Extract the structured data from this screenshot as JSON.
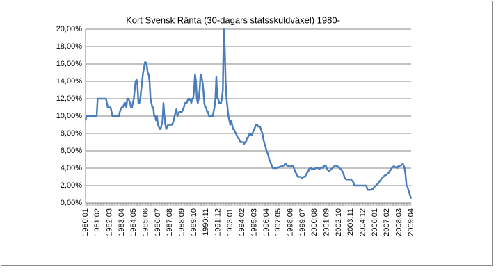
{
  "chart_data": {
    "type": "line",
    "title": "Kort Svensk Ränta (30-dagars statsskuldväxel) 1980-",
    "categories": [
      "1980:01",
      null,
      null,
      null,
      null,
      null,
      null,
      null,
      null,
      null,
      null,
      null,
      null,
      "1981:02",
      null,
      null,
      null,
      null,
      null,
      null,
      null,
      null,
      null,
      null,
      null,
      null,
      "1982:03",
      null,
      null,
      null,
      null,
      null,
      null,
      null,
      null,
      null,
      null,
      null,
      null,
      "1983:04",
      null,
      null,
      null,
      null,
      null,
      null,
      null,
      null,
      null,
      null,
      null,
      null,
      "1984:05",
      null,
      null,
      null,
      null,
      null,
      null,
      null,
      null,
      null,
      null,
      null,
      null,
      "1985:06",
      null,
      null,
      null,
      null,
      null,
      null,
      null,
      null,
      null,
      null,
      null,
      null,
      "1986:07",
      null,
      null,
      null,
      null,
      null,
      null,
      null,
      null,
      null,
      null,
      null,
      null,
      "1987:08",
      null,
      null,
      null,
      null,
      null,
      null,
      null,
      null,
      null,
      null,
      null,
      null,
      "1988:09",
      null,
      null,
      null,
      null,
      null,
      null,
      null,
      null,
      null,
      null,
      null,
      null,
      "1989:10",
      null,
      null,
      null,
      null,
      null,
      null,
      null,
      null,
      null,
      null,
      null,
      null,
      "1990:11",
      null,
      null,
      null,
      null,
      null,
      null,
      null,
      null,
      null,
      null,
      null,
      null,
      "1991:12",
      null,
      null,
      null,
      null,
      null,
      null,
      null,
      null,
      null,
      null,
      null,
      null,
      "1993:01",
      null,
      null,
      null,
      null,
      null,
      null,
      null,
      null,
      null,
      null,
      null,
      null,
      "1994:02",
      null,
      null,
      null,
      null,
      null,
      null,
      null,
      null,
      null,
      null,
      null,
      null,
      "1995:03",
      null,
      null,
      null,
      null,
      null,
      null,
      null,
      null,
      null,
      null,
      null,
      null,
      "1996:04",
      null,
      null,
      null,
      null,
      null,
      null,
      null,
      null,
      null,
      null,
      null,
      null,
      "1997:05",
      null,
      null,
      null,
      null,
      null,
      null,
      null,
      null,
      null,
      null,
      null,
      null,
      "1998:06",
      null,
      null,
      null,
      null,
      null,
      null,
      null,
      null,
      null,
      null,
      null,
      null,
      "1999:07",
      null,
      null,
      null,
      null,
      null,
      null,
      null,
      null,
      null,
      null,
      null,
      null,
      "2000:08",
      null,
      null,
      null,
      null,
      null,
      null,
      null,
      null,
      null,
      null,
      null,
      null,
      "2001:09",
      null,
      null,
      null,
      null,
      null,
      null,
      null,
      null,
      null,
      null,
      null,
      null,
      "2002:10",
      null,
      null,
      null,
      null,
      null,
      null,
      null,
      null,
      null,
      null,
      null,
      null,
      "2003:11",
      null,
      null,
      null,
      null,
      null,
      null,
      null,
      null,
      null,
      null,
      null,
      null,
      "2004:12",
      null,
      null,
      null,
      null,
      null,
      null,
      null,
      null,
      null,
      null,
      null,
      null,
      "2006:01",
      null,
      null,
      null,
      null,
      null,
      null,
      null,
      null,
      null,
      null,
      null,
      null,
      "2007:02",
      null,
      null,
      null,
      null,
      null,
      null,
      null,
      null,
      null,
      null,
      null,
      null,
      "2008:03",
      null,
      null,
      null,
      null,
      null,
      null,
      null,
      null,
      null,
      null,
      null,
      null,
      "2009:04"
    ],
    "values": [
      9.5,
      10,
      10,
      10,
      10,
      10,
      10,
      10,
      10,
      10,
      10,
      10,
      10,
      12,
      12,
      12,
      12,
      12,
      12,
      12,
      12,
      12,
      12,
      11.5,
      11,
      11,
      11,
      11,
      10.5,
      10,
      10,
      10,
      10,
      10,
      10,
      10,
      10,
      10.5,
      10.8,
      11,
      11,
      11.2,
      11.5,
      11.5,
      11,
      12,
      12,
      11.8,
      11.5,
      11,
      11,
      11.5,
      12,
      13,
      14,
      14.2,
      13.5,
      11.5,
      11.5,
      12,
      13,
      14,
      15,
      15.5,
      16.2,
      16.2,
      15.8,
      15,
      14.8,
      14,
      12,
      11.5,
      11,
      11,
      10,
      10,
      9.5,
      10,
      9,
      8.8,
      8.5,
      8.5,
      9,
      9.5,
      11.5,
      10,
      9,
      8.5,
      8.8,
      9,
      9,
      9,
      9,
      9,
      9.2,
      9.5,
      10,
      10.5,
      10.8,
      10,
      10.2,
      10.5,
      10.5,
      10.5,
      10.5,
      10.8,
      11,
      11.5,
      11.5,
      11.5,
      11.8,
      12,
      12,
      11.8,
      11.5,
      12,
      12,
      13,
      14.8,
      14,
      12,
      11.5,
      12,
      13,
      14.8,
      14.5,
      14,
      13,
      11.5,
      11,
      11,
      10.5,
      10.5,
      10,
      10,
      10,
      10,
      10,
      10.5,
      11,
      12,
      14.5,
      12,
      12,
      11.5,
      11.5,
      11.5,
      12,
      13,
      20,
      18,
      14,
      12,
      11,
      10,
      9.5,
      9,
      9.5,
      9,
      8.5,
      8.5,
      8.2,
      8,
      7.8,
      7.5,
      7.5,
      7.2,
      7,
      7,
      7,
      7,
      6.8,
      7,
      7,
      7.5,
      7.5,
      7.8,
      8,
      8,
      7.8,
      8,
      8.3,
      8.5,
      8.8,
      9,
      9,
      8.8,
      8.8,
      8.8,
      8.5,
      8.2,
      7.8,
      7.2,
      6.8,
      6.5,
      6,
      5.8,
      5.5,
      5,
      4.8,
      4.5,
      4.2,
      4,
      4,
      4,
      4,
      4,
      4.1,
      4.1,
      4.1,
      4.2,
      4.2,
      4.2,
      4.3,
      4.3,
      4.5,
      4.5,
      4.3,
      4.3,
      4.2,
      4.2,
      4.2,
      4.2,
      4.3,
      4.2,
      3.9,
      3.6,
      3.4,
      3.2,
      3,
      3,
      3,
      3,
      2.9,
      2.9,
      3,
      3,
      3.1,
      3.3,
      3.5,
      3.6,
      3.9,
      4,
      4,
      3.9,
      3.9,
      3.9,
      3.9,
      4,
      4,
      4,
      4,
      3.9,
      4,
      4,
      4.1,
      4,
      4.2,
      4.3,
      4.3,
      4,
      3.8,
      3.7,
      3.7,
      3.8,
      3.9,
      4,
      4.1,
      4.2,
      4.3,
      4.3,
      4.2,
      4.2,
      4.1,
      4,
      3.9,
      3.8,
      3.6,
      3.4,
      3,
      2.8,
      2.7,
      2.7,
      2.7,
      2.7,
      2.7,
      2.7,
      2.6,
      2.5,
      2.3,
      2,
      2,
      2,
      2,
      2,
      2,
      2,
      2,
      2,
      2,
      2,
      2,
      2,
      1.9,
      1.5,
      1.5,
      1.5,
      1.5,
      1.5,
      1.6,
      1.6,
      1.8,
      1.9,
      2,
      2.1,
      2.2,
      2.3,
      2.5,
      2.6,
      2.8,
      2.9,
      3,
      3.1,
      3.2,
      3.2,
      3.3,
      3.4,
      3.5,
      3.7,
      3.8,
      4,
      4.1,
      4.2,
      4.2,
      4.1,
      4.1,
      4,
      4.2,
      4.2,
      4.3,
      4.3,
      4.4,
      4.5,
      4.3,
      4,
      3.2,
      2,
      1.9,
      1.5,
      1.2,
      0.8,
      0.5
    ],
    "color": "#4a7ebb",
    "ylim": [
      0,
      20
    ],
    "yticks": [
      {
        "value": 0,
        "label": "0,00%"
      },
      {
        "value": 2,
        "label": "2,00%"
      },
      {
        "value": 4,
        "label": "4,00%"
      },
      {
        "value": 6,
        "label": "6,00%"
      },
      {
        "value": 8,
        "label": "8,00%"
      },
      {
        "value": 10,
        "label": "10,00%"
      },
      {
        "value": 12,
        "label": "12,00%"
      },
      {
        "value": 14,
        "label": "14,00%"
      },
      {
        "value": 16,
        "label": "16,00%"
      },
      {
        "value": 18,
        "label": "18,00%"
      },
      {
        "value": 20,
        "label": "20,00%"
      }
    ],
    "grid": true
  }
}
